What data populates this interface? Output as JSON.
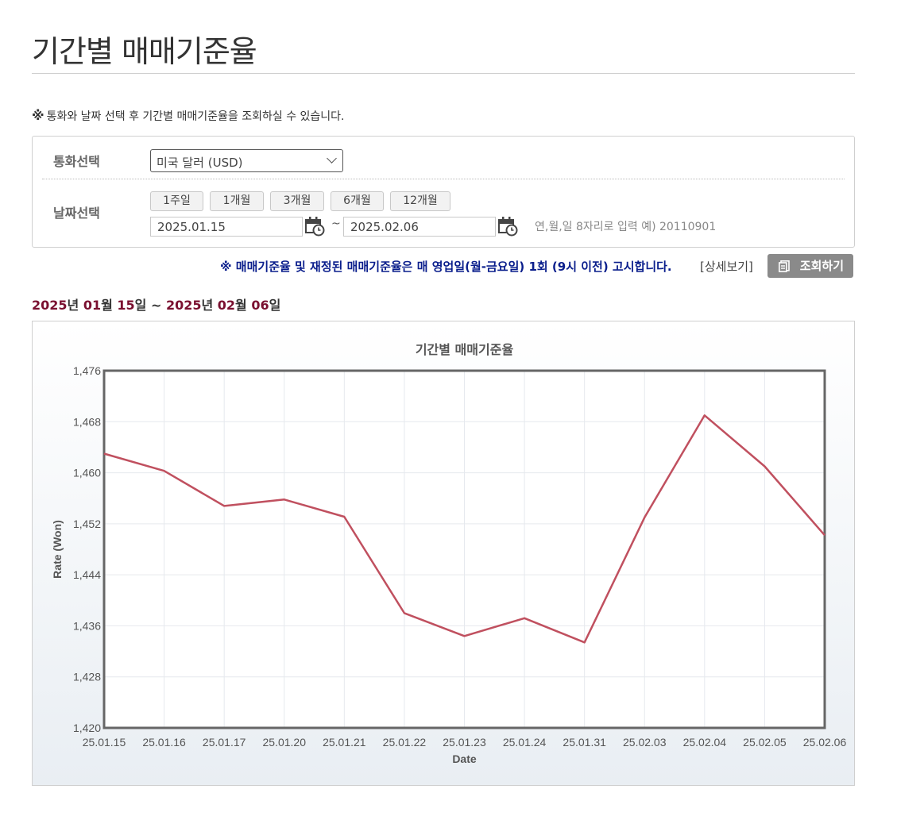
{
  "page": {
    "title": "기간별 매매기준율",
    "notice_mark": "※",
    "notice": "통화와 날짜 선택 후 기간별 매매기준율을 조회하실 수 있습니다."
  },
  "search": {
    "currency_label": "통화선택",
    "currency_value": "미국 달러 (USD)",
    "date_label": "날짜선택",
    "period_buttons": [
      "1주일",
      "1개월",
      "3개월",
      "6개월",
      "12개월"
    ],
    "start_date": "2025.01.15",
    "tilde": "~",
    "end_date": "2025.02.06",
    "date_hint": "연,월,일 8자리로 입력 예) 20110901"
  },
  "announcement": "※ 매매기준율 및 재정된 매매기준율은 매 영업일(월-금요일) 1회 (9시 이전) 고시합니다.",
  "detail_link": "[상세보기]",
  "query_button": "조회하기",
  "range": {
    "start_year": "2025",
    "y1": "년 ",
    "start_month": "01",
    "m1": "월 ",
    "start_day": "15",
    "d1": "일 ~ ",
    "end_year": "2025",
    "y2": "년 ",
    "end_month": "02",
    "m2": "월 ",
    "end_day": "06",
    "d2": "일"
  },
  "colors": {
    "line": "#c0505f",
    "range_number": "#7a1030",
    "announcement": "#0a1e8c",
    "query_button": "#8a8a8a"
  },
  "chart_data": {
    "type": "line",
    "title": "기간별 매매기준율",
    "xlabel": "Date",
    "ylabel": "Rate (Won)",
    "categories": [
      "25.01.15",
      "25.01.16",
      "25.01.17",
      "25.01.20",
      "25.01.21",
      "25.01.22",
      "25.01.23",
      "25.01.24",
      "25.01.31",
      "25.02.03",
      "25.02.04",
      "25.02.05",
      "25.02.06"
    ],
    "values": [
      1463.0,
      1460.3,
      1454.8,
      1455.8,
      1453.1,
      1438.0,
      1434.4,
      1437.2,
      1433.4,
      1453.0,
      1469.0,
      1461.0,
      1450.2
    ],
    "ylim": [
      1420,
      1476
    ],
    "yticks": [
      1420,
      1428,
      1436,
      1444,
      1452,
      1460,
      1468,
      1476
    ],
    "ytick_labels": [
      "1,420",
      "1,428",
      "1,436",
      "1,444",
      "1,452",
      "1,460",
      "1,468",
      "1,476"
    ],
    "grid": true,
    "legend": "none"
  }
}
